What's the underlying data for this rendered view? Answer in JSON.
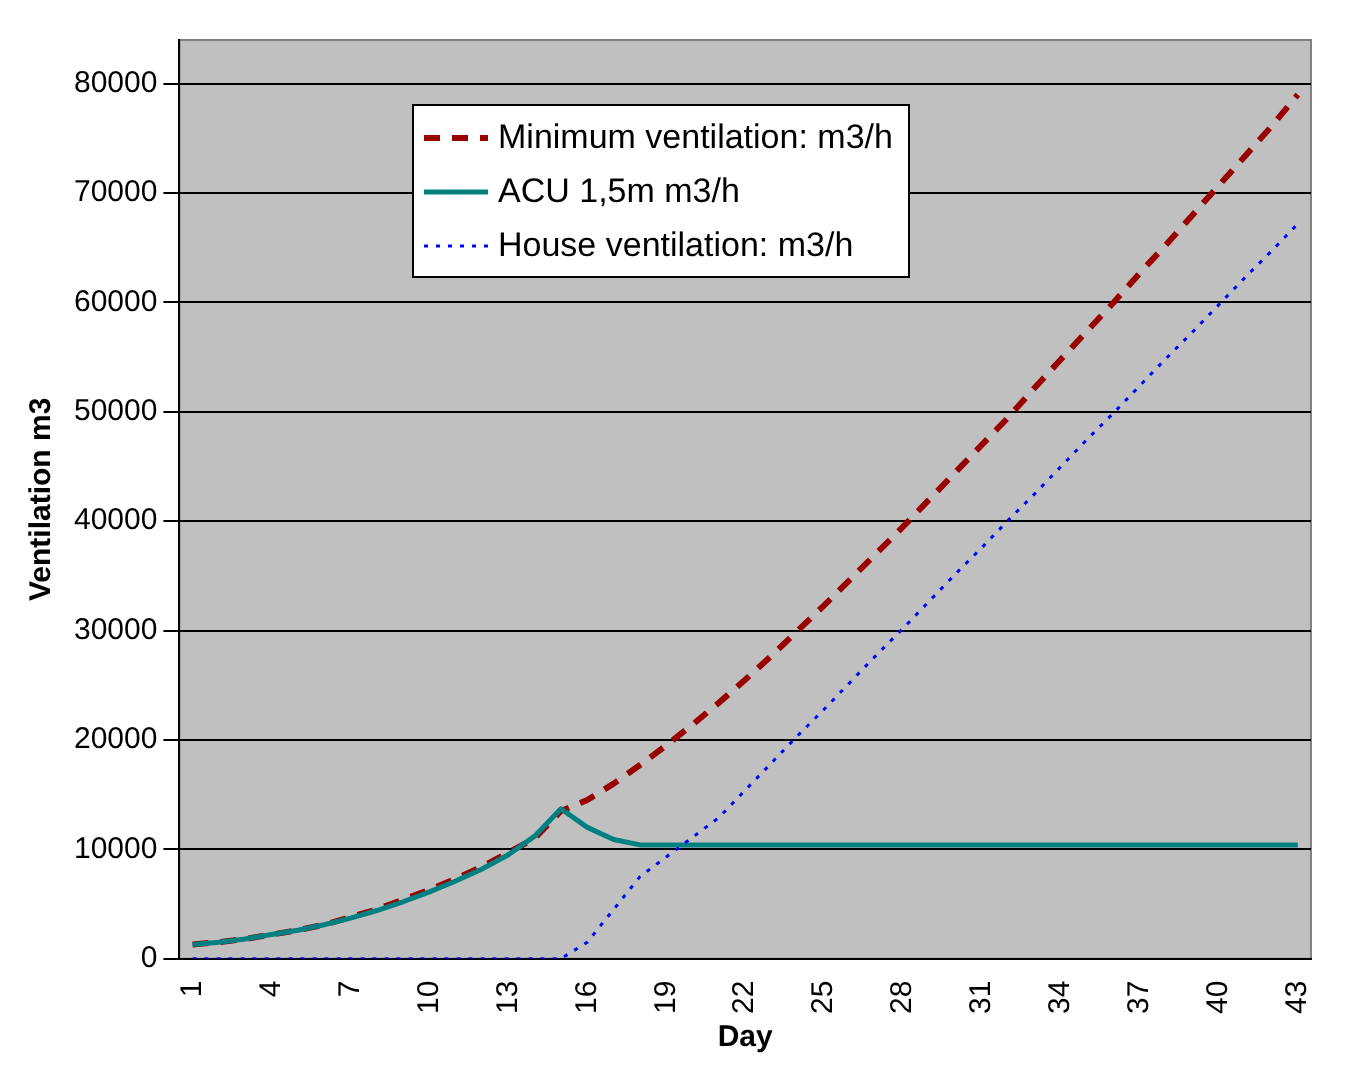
{
  "chart_data": {
    "type": "line",
    "xlabel": "Day",
    "ylabel": "Ventilation m3",
    "categories": [
      "1",
      null,
      null,
      "4",
      null,
      null,
      "7",
      null,
      null,
      "10",
      null,
      null,
      "13",
      null,
      null,
      "16",
      null,
      null,
      "19",
      null,
      null,
      "22",
      null,
      null,
      "25",
      null,
      null,
      "28",
      null,
      null,
      "31",
      null,
      null,
      "34",
      null,
      null,
      "37",
      null,
      null,
      "40",
      null,
      null,
      "43"
    ],
    "series": [
      {
        "name": "Minimum ventilation: m3/h",
        "color": "#990000",
        "line_style": "dashed",
        "values": [
          1300,
          1500,
          1800,
          2200,
          2600,
          3100,
          3800,
          4500,
          5400,
          6300,
          7300,
          8400,
          9700,
          11000,
          13500,
          14500,
          16000,
          17700,
          19500,
          21400,
          23400,
          25500,
          27700,
          30000,
          32300,
          34700,
          37100,
          39500,
          42000,
          44500,
          47000,
          49500,
          52200,
          54800,
          57400,
          60000,
          62700,
          65300,
          68000,
          70700,
          73400,
          76100,
          79000
        ]
      },
      {
        "name": "ACU 1,5m m3/h",
        "color": "#008080",
        "line_style": "solid",
        "values": [
          1300,
          1500,
          1800,
          2200,
          2600,
          3100,
          3700,
          4400,
          5200,
          6100,
          7100,
          8200,
          9500,
          11200,
          13700,
          12000,
          10900,
          10400,
          10400,
          10400,
          10400,
          10400,
          10400,
          10400,
          10400,
          10400,
          10400,
          10400,
          10400,
          10400,
          10400,
          10400,
          10400,
          10400,
          10400,
          10400,
          10400,
          10400,
          10400,
          10400,
          10400,
          10400,
          10400
        ]
      },
      {
        "name": "House ventilation: m3/h",
        "color": "#0000ff",
        "line_style": "dotted",
        "values": [
          0,
          0,
          0,
          0,
          0,
          0,
          0,
          0,
          0,
          0,
          0,
          0,
          0,
          0,
          0,
          1500,
          4500,
          7500,
          9300,
          11100,
          12900,
          15400,
          17900,
          20400,
          22800,
          25300,
          27800,
          30200,
          32700,
          35200,
          37600,
          40100,
          42500,
          45000,
          47500,
          49900,
          52400,
          54900,
          57300,
          59800,
          62300,
          64700,
          67200
        ]
      }
    ],
    "ylim": [
      0,
      84000
    ],
    "yticks": [
      0,
      10000,
      20000,
      30000,
      40000,
      50000,
      60000,
      70000,
      80000
    ],
    "grid": "y",
    "legend": "top",
    "marker": "none"
  }
}
